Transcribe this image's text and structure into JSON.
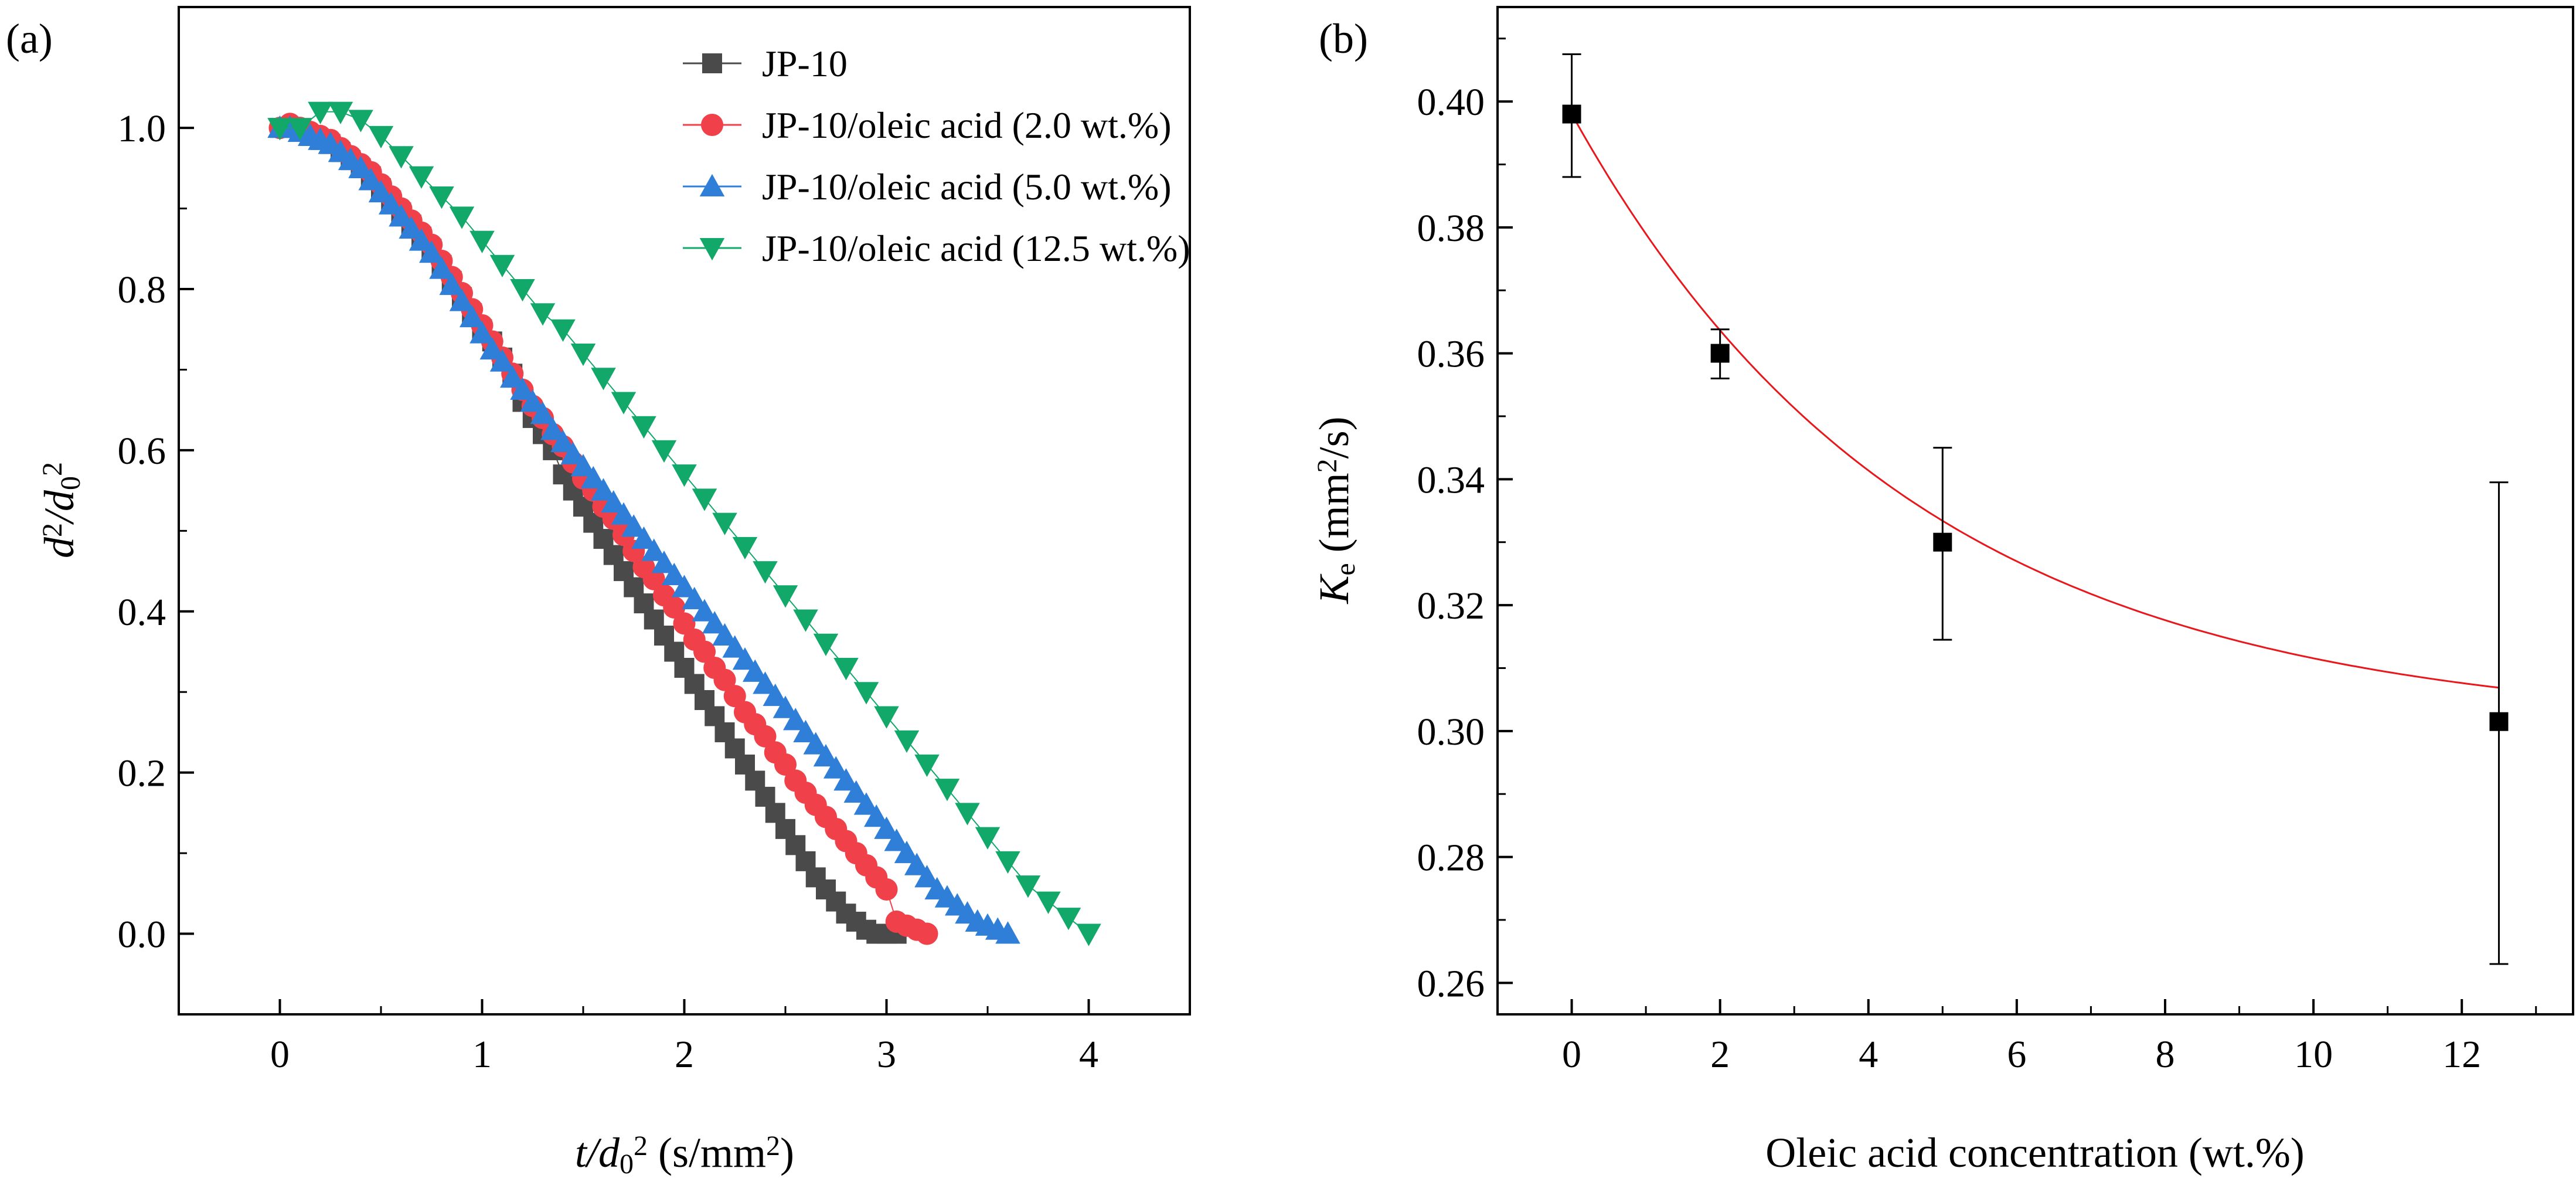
{
  "chart_data": [
    {
      "panel_label": "(a)",
      "type": "scatter",
      "xlabel_parts": [
        "t",
        "/d",
        "0",
        "2",
        " (s/mm",
        "2",
        ")"
      ],
      "ylabel_parts": [
        "d",
        "2",
        "/d",
        "0",
        "2"
      ],
      "xlim": [
        -0.5,
        4.5
      ],
      "ylim": [
        -0.1,
        1.15
      ],
      "xticks": [
        0,
        1,
        2,
        3,
        4
      ],
      "xtick_labels": [
        "0",
        "1",
        "2",
        "3",
        "4"
      ],
      "yticks": [
        0.0,
        0.2,
        0.4,
        0.6,
        0.8,
        1.0
      ],
      "ytick_labels": [
        "0.0",
        "0.2",
        "0.4",
        "0.6",
        "0.8",
        "1.0"
      ],
      "legend_position": "top-right",
      "series": [
        {
          "name": "JP-10",
          "marker": "square",
          "color": "#4a4a4a",
          "x": [
            0.0,
            0.05,
            0.1,
            0.15,
            0.2,
            0.25,
            0.3,
            0.35,
            0.4,
            0.45,
            0.5,
            0.55,
            0.6,
            0.65,
            0.7,
            0.75,
            0.8,
            0.85,
            0.9,
            0.95,
            1.0,
            1.05,
            1.1,
            1.15,
            1.2,
            1.25,
            1.3,
            1.35,
            1.4,
            1.45,
            1.5,
            1.55,
            1.6,
            1.65,
            1.7,
            1.75,
            1.8,
            1.85,
            1.9,
            1.95,
            2.0,
            2.05,
            2.1,
            2.15,
            2.2,
            2.25,
            2.3,
            2.35,
            2.4,
            2.45,
            2.5,
            2.55,
            2.6,
            2.65,
            2.7,
            2.75,
            2.8,
            2.85,
            2.9,
            2.95,
            3.0,
            3.05
          ],
          "y": [
            1.0,
            1.0,
            0.995,
            0.99,
            0.985,
            0.98,
            0.97,
            0.96,
            0.95,
            0.94,
            0.925,
            0.91,
            0.895,
            0.88,
            0.865,
            0.85,
            0.83,
            0.81,
            0.79,
            0.77,
            0.75,
            0.735,
            0.715,
            0.695,
            0.66,
            0.64,
            0.62,
            0.6,
            0.57,
            0.55,
            0.53,
            0.51,
            0.49,
            0.47,
            0.45,
            0.43,
            0.41,
            0.39,
            0.37,
            0.35,
            0.33,
            0.31,
            0.29,
            0.27,
            0.25,
            0.23,
            0.21,
            0.19,
            0.17,
            0.15,
            0.13,
            0.11,
            0.09,
            0.07,
            0.055,
            0.04,
            0.025,
            0.015,
            0.005,
            0.0,
            0.0,
            0.0
          ]
        },
        {
          "name": "JP-10/oleic acid (2.0 wt.%)",
          "marker": "circle",
          "color": "#f0404a",
          "x": [
            0.0,
            0.05,
            0.1,
            0.15,
            0.2,
            0.25,
            0.3,
            0.35,
            0.4,
            0.45,
            0.5,
            0.55,
            0.6,
            0.65,
            0.7,
            0.75,
            0.8,
            0.85,
            0.9,
            0.95,
            1.0,
            1.05,
            1.1,
            1.15,
            1.2,
            1.25,
            1.3,
            1.35,
            1.4,
            1.45,
            1.5,
            1.55,
            1.6,
            1.65,
            1.7,
            1.75,
            1.8,
            1.85,
            1.9,
            1.95,
            2.0,
            2.05,
            2.1,
            2.15,
            2.2,
            2.25,
            2.3,
            2.35,
            2.4,
            2.45,
            2.5,
            2.55,
            2.6,
            2.65,
            2.7,
            2.75,
            2.8,
            2.85,
            2.9,
            2.95,
            3.0,
            3.05,
            3.1,
            3.15,
            3.2
          ],
          "y": [
            1.0,
            1.005,
            1.0,
            0.995,
            0.99,
            0.985,
            0.975,
            0.965,
            0.955,
            0.945,
            0.93,
            0.915,
            0.9,
            0.885,
            0.87,
            0.855,
            0.835,
            0.815,
            0.795,
            0.775,
            0.755,
            0.735,
            0.715,
            0.695,
            0.675,
            0.655,
            0.64,
            0.62,
            0.605,
            0.585,
            0.565,
            0.55,
            0.53,
            0.515,
            0.495,
            0.475,
            0.455,
            0.44,
            0.42,
            0.405,
            0.385,
            0.365,
            0.35,
            0.33,
            0.315,
            0.295,
            0.275,
            0.26,
            0.245,
            0.225,
            0.21,
            0.19,
            0.175,
            0.16,
            0.145,
            0.13,
            0.115,
            0.1,
            0.085,
            0.07,
            0.055,
            0.015,
            0.01,
            0.005,
            0.0
          ]
        },
        {
          "name": "JP-10/oleic acid (5.0 wt.%)",
          "marker": "triangle-up",
          "color": "#2f7fd8",
          "x": [
            0.0,
            0.05,
            0.1,
            0.15,
            0.2,
            0.25,
            0.3,
            0.35,
            0.4,
            0.45,
            0.5,
            0.55,
            0.6,
            0.65,
            0.7,
            0.75,
            0.8,
            0.85,
            0.9,
            0.95,
            1.0,
            1.05,
            1.1,
            1.15,
            1.2,
            1.25,
            1.3,
            1.35,
            1.4,
            1.45,
            1.5,
            1.55,
            1.6,
            1.65,
            1.7,
            1.75,
            1.8,
            1.85,
            1.9,
            1.95,
            2.0,
            2.05,
            2.1,
            2.15,
            2.2,
            2.25,
            2.3,
            2.35,
            2.4,
            2.45,
            2.5,
            2.55,
            2.6,
            2.65,
            2.7,
            2.75,
            2.8,
            2.85,
            2.9,
            2.95,
            3.0,
            3.05,
            3.1,
            3.15,
            3.2,
            3.25,
            3.3,
            3.35,
            3.4,
            3.45,
            3.5,
            3.55,
            3.6
          ],
          "y": [
            1.0,
            1.0,
            0.995,
            0.99,
            0.985,
            0.98,
            0.97,
            0.96,
            0.95,
            0.935,
            0.92,
            0.905,
            0.89,
            0.875,
            0.86,
            0.845,
            0.825,
            0.805,
            0.785,
            0.765,
            0.745,
            0.725,
            0.71,
            0.69,
            0.675,
            0.66,
            0.645,
            0.625,
            0.61,
            0.595,
            0.58,
            0.565,
            0.55,
            0.535,
            0.52,
            0.505,
            0.49,
            0.475,
            0.46,
            0.445,
            0.43,
            0.415,
            0.4,
            0.385,
            0.37,
            0.355,
            0.34,
            0.325,
            0.31,
            0.295,
            0.28,
            0.265,
            0.25,
            0.235,
            0.22,
            0.205,
            0.19,
            0.175,
            0.16,
            0.145,
            0.13,
            0.115,
            0.1,
            0.085,
            0.07,
            0.055,
            0.045,
            0.035,
            0.025,
            0.015,
            0.01,
            0.005,
            0.0
          ]
        },
        {
          "name": "JP-10/oleic acid (12.5 wt.%)",
          "marker": "triangle-down",
          "color": "#12a86a",
          "x": [
            0.0,
            0.1,
            0.2,
            0.3,
            0.4,
            0.5,
            0.6,
            0.7,
            0.8,
            0.9,
            1.0,
            1.1,
            1.2,
            1.3,
            1.4,
            1.5,
            1.6,
            1.7,
            1.8,
            1.9,
            2.0,
            2.1,
            2.2,
            2.3,
            2.4,
            2.5,
            2.6,
            2.7,
            2.8,
            2.9,
            3.0,
            3.1,
            3.2,
            3.3,
            3.4,
            3.5,
            3.6,
            3.7,
            3.8,
            3.9,
            4.0
          ],
          "y": [
            1.0,
            1.0,
            1.02,
            1.02,
            1.01,
            0.99,
            0.965,
            0.94,
            0.915,
            0.89,
            0.86,
            0.83,
            0.8,
            0.77,
            0.75,
            0.72,
            0.69,
            0.66,
            0.63,
            0.6,
            0.57,
            0.54,
            0.51,
            0.48,
            0.45,
            0.42,
            0.39,
            0.36,
            0.33,
            0.3,
            0.27,
            0.24,
            0.21,
            0.18,
            0.15,
            0.12,
            0.09,
            0.06,
            0.04,
            0.02,
            0.0
          ]
        }
      ]
    },
    {
      "panel_label": "(b)",
      "type": "scatter",
      "xlabel": "Oleic acid concentration (wt.%)",
      "ylabel_parts": [
        "K",
        "e",
        " (mm",
        "2",
        "/s)"
      ],
      "xlim": [
        -1,
        13.5
      ],
      "ylim": [
        0.255,
        0.415
      ],
      "xticks": [
        0,
        2,
        4,
        6,
        8,
        10,
        12
      ],
      "xtick_labels": [
        "0",
        "2",
        "4",
        "6",
        "8",
        "10",
        "12"
      ],
      "yticks": [
        0.26,
        0.28,
        0.3,
        0.32,
        0.34,
        0.36,
        0.38,
        0.4
      ],
      "ytick_labels": [
        "0.26",
        "0.28",
        "0.30",
        "0.32",
        "0.34",
        "0.36",
        "0.38",
        "0.40"
      ],
      "points": {
        "x": [
          0,
          2,
          5,
          12.5
        ],
        "y": [
          0.398,
          0.36,
          0.33,
          0.3015
        ],
        "err_low": [
          0.388,
          0.356,
          0.3145,
          0.263
        ],
        "err_high": [
          0.4075,
          0.3638,
          0.345,
          0.3395
        ],
        "color": "#000000"
      },
      "fit": {
        "model": "exponential decay",
        "x_range": [
          0,
          12.5
        ],
        "y0": 0.3004,
        "A": 0.0976,
        "t": 4.61,
        "color": "#e8171c"
      }
    }
  ]
}
